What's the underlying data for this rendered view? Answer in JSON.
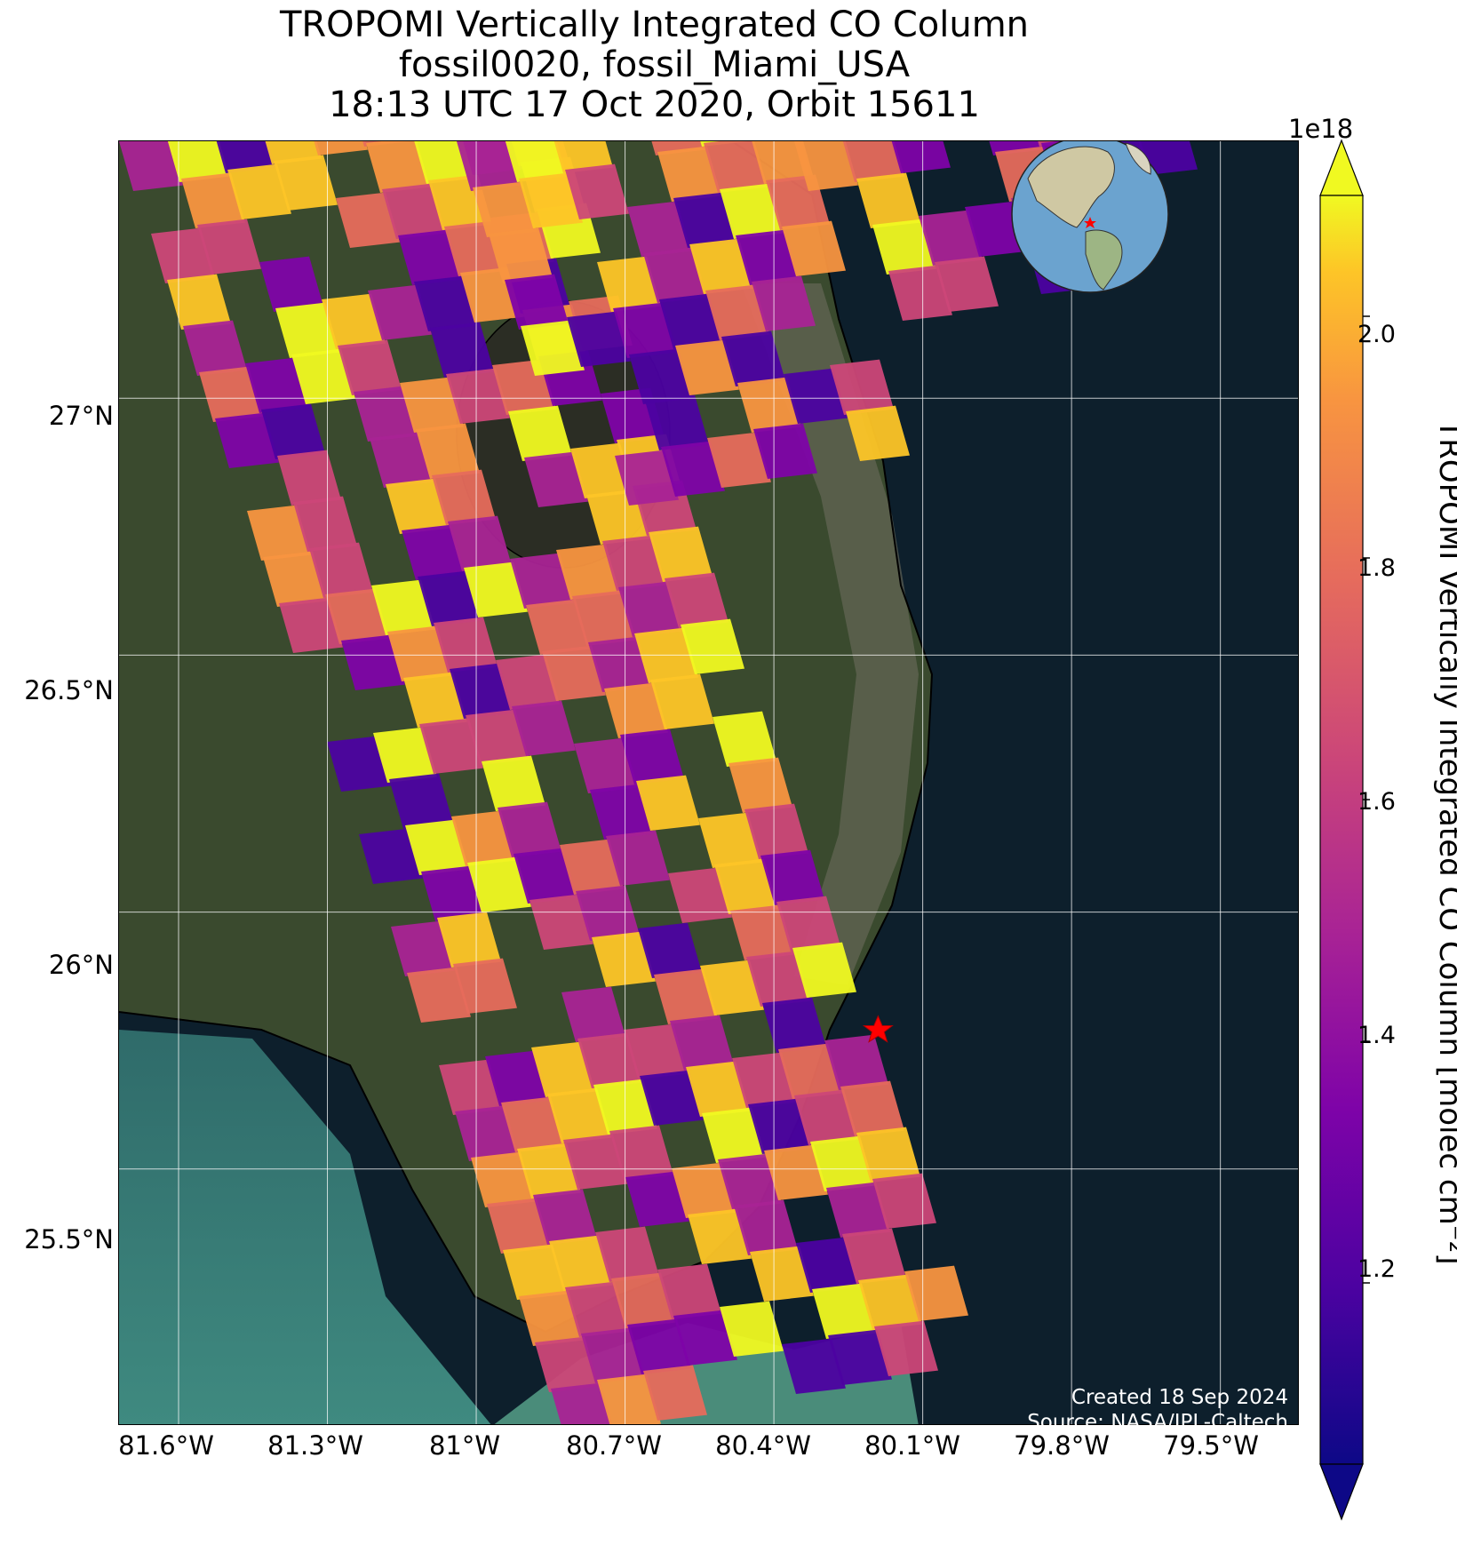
{
  "title": {
    "line1": "TROPOMI Vertically Integrated CO Column",
    "line2": "fossil0020, fossil_Miami_USA",
    "line3": "18:13 UTC 17 Oct 2020, Orbit 15611"
  },
  "axes": {
    "lat_ticks": [
      "27°N",
      "26.5°N",
      "26°N",
      "25.5°N"
    ],
    "lon_ticks": [
      "81.6°W",
      "81.3°W",
      "81°W",
      "80.7°W",
      "80.4°W",
      "80.1°W",
      "79.8°W",
      "79.5°W"
    ]
  },
  "colorbar": {
    "label": "TROPOMI Vertically Integrated CO Column [molec cm⁻²]",
    "exponent": "1e18",
    "ticks": [
      "2.0",
      "1.8",
      "1.6",
      "1.4",
      "1.2"
    ],
    "colormap": "plasma",
    "range": [
      1.05,
      2.1
    ],
    "extend": "both"
  },
  "map": {
    "extent_lon": [
      -81.72,
      -79.34
    ],
    "extent_lat": [
      25.0,
      27.5
    ],
    "background": "satellite imagery",
    "gridlines": true,
    "target_marker": {
      "lon": -80.19,
      "lat": 25.77,
      "color": "#ff0000",
      "symbol": "star"
    },
    "inset_globe": true
  },
  "credits": {
    "created": "Created 18 Sep 2024",
    "source": "Source: NASA/JPL-Caltech"
  },
  "colors": {
    "ocean": "#0d1f2c",
    "land": "#3a4a2e",
    "grid": "#ffffff",
    "star": "#ff0000"
  }
}
